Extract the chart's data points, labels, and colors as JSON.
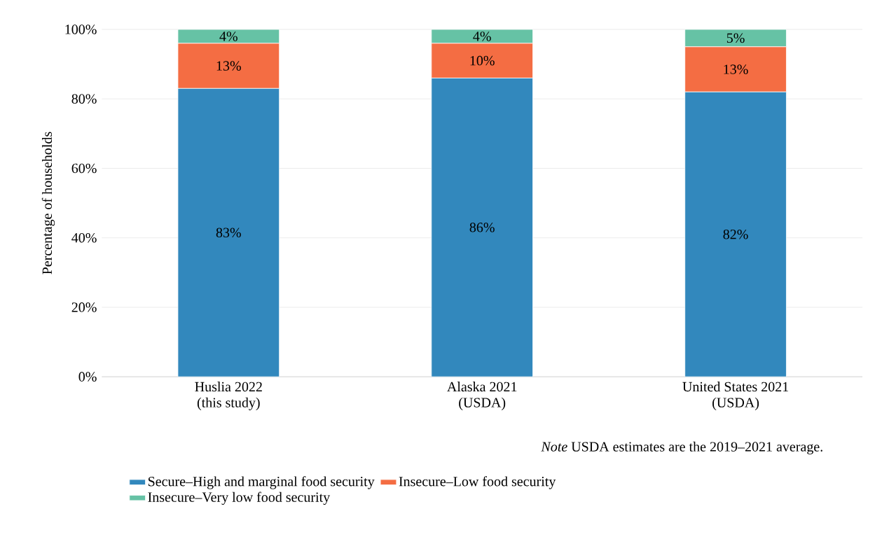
{
  "chart_data": {
    "type": "bar",
    "stacked": true,
    "categories": [
      "Huslia 2022\n(this study)",
      "Alaska 2021\n(USDA)",
      "United States 2021\n(USDA)"
    ],
    "series": [
      {
        "name": "Secure–High and marginal food security",
        "color": "#3288bd",
        "values": [
          83,
          86,
          82
        ],
        "value_labels": [
          "83%",
          "86%",
          "82%"
        ]
      },
      {
        "name": "Insecure–Low food security",
        "color": "#f46d43",
        "values": [
          13,
          10,
          13
        ],
        "value_labels": [
          "13%",
          "10%",
          "13%"
        ]
      },
      {
        "name": "Insecure–Very low food security",
        "color": "#66c2a5",
        "values": [
          4,
          4,
          5
        ],
        "value_labels": [
          "4%",
          "4%",
          "5%"
        ]
      }
    ],
    "ylabel": "Percentage of households",
    "ylim": [
      0,
      100
    ],
    "yticks": [
      {
        "value": 0,
        "label": "0%"
      },
      {
        "value": 20,
        "label": "20%"
      },
      {
        "value": 40,
        "label": "40%"
      },
      {
        "value": 60,
        "label": "60%"
      },
      {
        "value": 80,
        "label": "80%"
      },
      {
        "value": 100,
        "label": "100%"
      }
    ],
    "grid": "y",
    "legend": "bottom",
    "annotations": [
      "*Note* USDA estimates are the 2019–2021 average."
    ]
  }
}
